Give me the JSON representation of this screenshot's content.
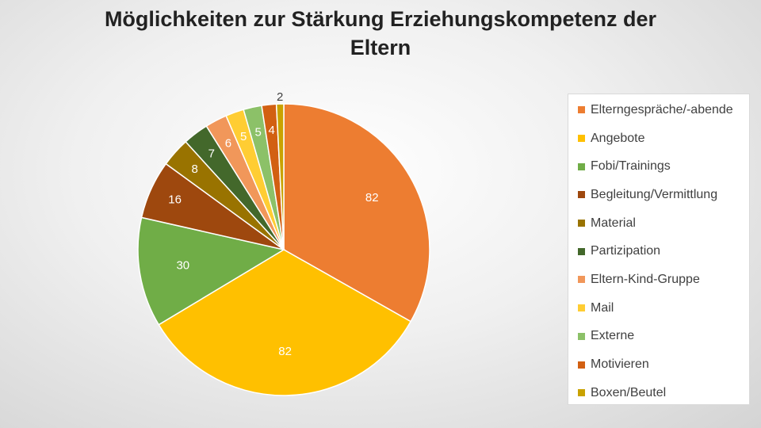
{
  "chart_data": {
    "type": "pie",
    "title_lines": [
      "Möglichkeiten zur Stärkung Erziehungskompetenz der",
      "Eltern"
    ],
    "categories": [
      "Elterngespräche/-abende",
      "Angebote",
      "Fobi/Trainings",
      "Begleitung/Vermittlung",
      "Material",
      "Partizipation",
      "Eltern-Kind-Gruppe",
      "Mail",
      "Externe",
      "Motivieren",
      "Boxen/Beutel"
    ],
    "values": [
      82,
      82,
      30,
      16,
      8,
      7,
      6,
      5,
      5,
      4,
      2
    ],
    "colors": [
      "#ED7D31",
      "#FFC000",
      "#70AD47",
      "#9E480E",
      "#997300",
      "#43682B",
      "#F1975A",
      "#FFCD33",
      "#8CC168",
      "#D26012",
      "#C9A200"
    ],
    "legend_position": "right",
    "start_angle_deg": 0,
    "direction": "clockwise"
  }
}
